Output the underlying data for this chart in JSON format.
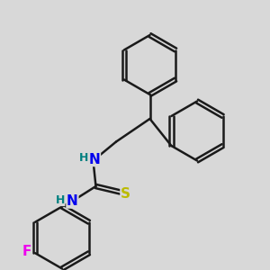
{
  "bg_color": "#d8d8d8",
  "bond_color": "#1a1a1a",
  "bond_width": 1.8,
  "atom_colors": {
    "N": "#0000ee",
    "S": "#bbbb00",
    "F": "#ee00ee",
    "H": "#008080",
    "C": "#1a1a1a"
  },
  "font_size_atom": 11,
  "font_size_H": 9
}
